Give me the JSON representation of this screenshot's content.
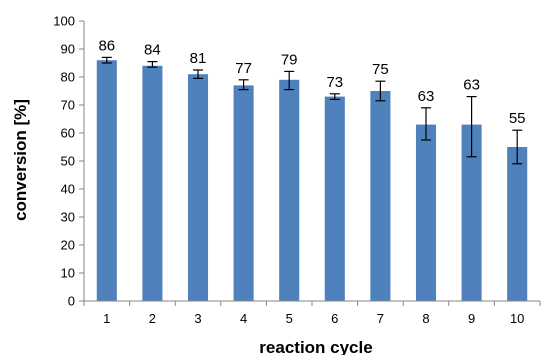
{
  "chart_data": {
    "type": "bar",
    "categories": [
      "1",
      "2",
      "3",
      "4",
      "5",
      "6",
      "7",
      "8",
      "9",
      "10"
    ],
    "values": [
      86,
      84,
      81,
      77,
      79,
      73,
      75,
      63,
      63,
      55
    ],
    "error_low": [
      85,
      83.5,
      79.5,
      75.5,
      75.5,
      72,
      71.5,
      57.5,
      51.5,
      49
    ],
    "error_high": [
      87,
      85.5,
      82.5,
      79,
      82,
      74,
      78.5,
      69,
      73,
      61
    ],
    "data_labels": [
      "86",
      "84",
      "81",
      "77",
      "79",
      "73",
      "75",
      "63",
      "63",
      "55"
    ],
    "xlabel": "reaction cycle",
    "ylabel": "conversion [%]",
    "ylim": [
      0,
      100
    ],
    "yticks": [
      "0",
      "10",
      "20",
      "30",
      "40",
      "50",
      "60",
      "70",
      "80",
      "90",
      "100"
    ],
    "grid": false,
    "legend": "none",
    "bar_color": "#4f81bd",
    "axis_color": "#868686"
  }
}
